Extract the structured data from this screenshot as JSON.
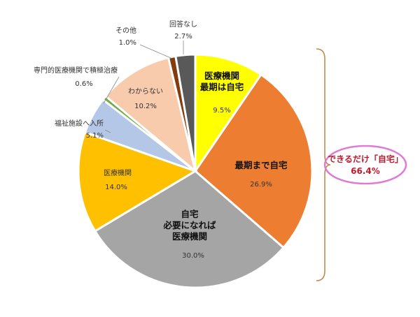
{
  "chart_data": {
    "type": "pie",
    "slices": [
      {
        "key": "iryo-saiki-jitaku",
        "label_lines": [
          "医療機関",
          "最期は自宅"
        ],
        "value": 9.5,
        "value_label": "9.5%",
        "color": "#ffff00",
        "label_style": "bold"
      },
      {
        "key": "saiki-made-jitaku",
        "label_lines": [
          "最期まで自宅"
        ],
        "value": 26.9,
        "value_label": "26.9%",
        "color": "#ed7d31",
        "label_style": "bold"
      },
      {
        "key": "jitaku-hitsuyo-iryo",
        "label_lines": [
          "自宅",
          "必要になれば",
          "医療機関"
        ],
        "value": 30.0,
        "value_label": "30.0%",
        "color": "#a5a5a5",
        "label_style": "bold"
      },
      {
        "key": "iryo-kikan",
        "label_lines": [
          "医療機関"
        ],
        "value": 14.0,
        "value_label": "14.0%",
        "color": "#ffc000",
        "label_style": "normal"
      },
      {
        "key": "fukushi-shisetsu",
        "label_lines": [
          "福祉施設へ入所"
        ],
        "value": 5.1,
        "value_label": "5.1%",
        "color": "#b4c7e7",
        "label_style": "normal"
      },
      {
        "key": "senmon-sekkyoku",
        "label_lines": [
          "専門的医療機関で積極治療"
        ],
        "value": 0.6,
        "value_label": "0.6%",
        "color": "#70ad47",
        "label_style": "normal"
      },
      {
        "key": "wakaranai",
        "label_lines": [
          "わからない"
        ],
        "value": 10.2,
        "value_label": "10.2%",
        "color": "#f8cbad",
        "label_style": "normal"
      },
      {
        "key": "sonota",
        "label_lines": [
          "その他"
        ],
        "value": 1.0,
        "value_label": "1.0%",
        "color": "#843c0c",
        "label_style": "normal"
      },
      {
        "key": "kaito-nashi",
        "label_lines": [
          "回答なし"
        ],
        "value": 2.7,
        "value_label": "2.7%",
        "color": "#595959",
        "label_style": "normal"
      }
    ],
    "start": "12 o'clock",
    "direction": "clockwise",
    "callout": {
      "title": "できるだけ「自宅」",
      "value": "66.4%",
      "ellipse_color": "#e07ad6",
      "brace_color": "#c48a4a"
    }
  }
}
